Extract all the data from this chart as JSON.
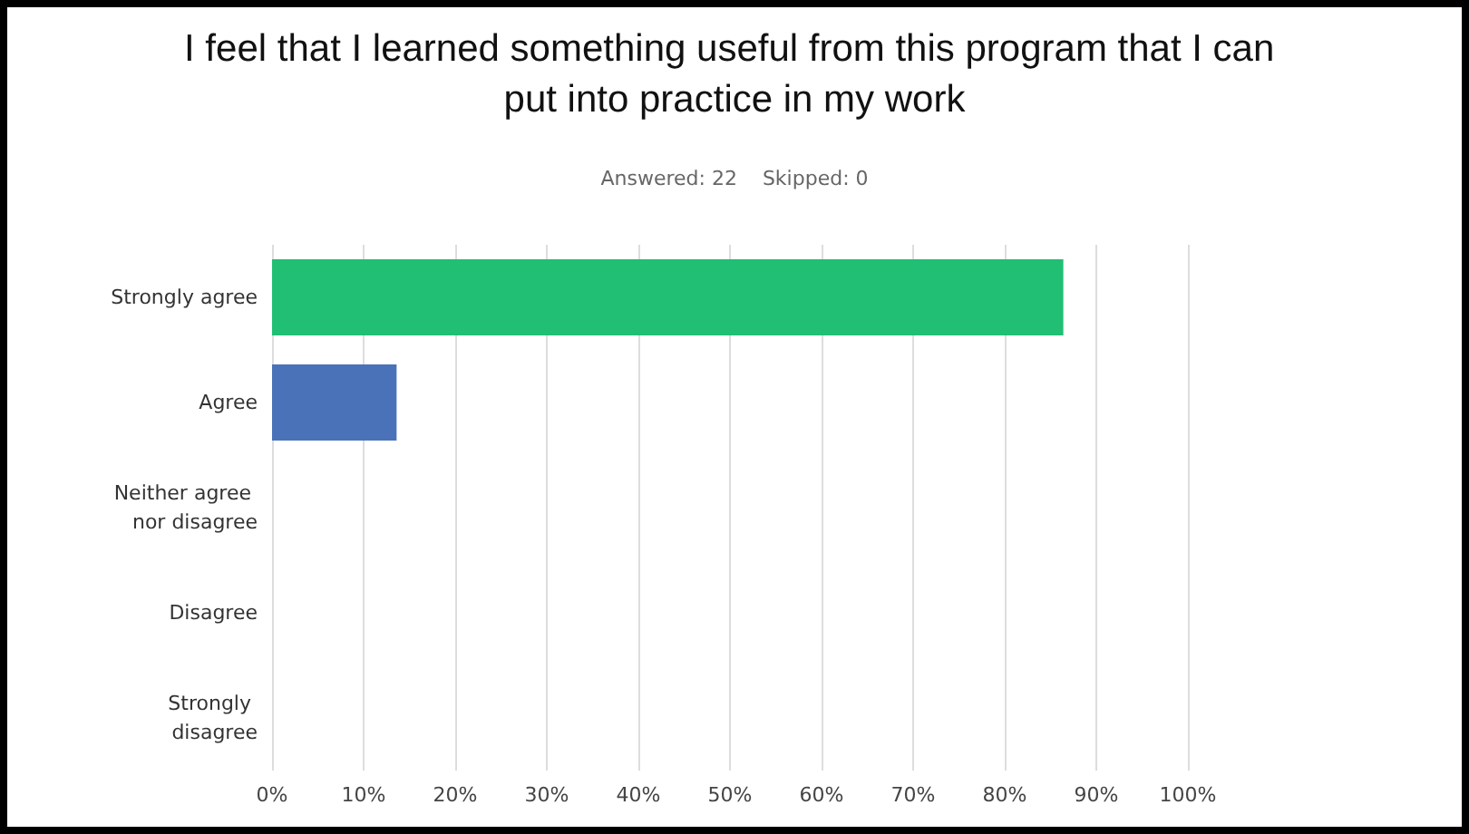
{
  "chart_data": {
    "type": "bar",
    "orientation": "horizontal",
    "title": "I feel that I learned something useful from this program that I can put into practice in my work",
    "subtitle": "Answered: 22    Skipped: 0",
    "categories": [
      "Strongly agree",
      "Agree",
      "Neither agree nor disagree",
      "Disagree",
      "Strongly disagree"
    ],
    "values": [
      86.4,
      13.6,
      0,
      0,
      0
    ],
    "colors": [
      "#21bf73",
      "#4a72b8",
      "#21bf73",
      "#21bf73",
      "#21bf73"
    ],
    "xlim": [
      0,
      100
    ],
    "xticks": [
      {
        "value": 0,
        "label": "0%"
      },
      {
        "value": 10,
        "label": "10%"
      },
      {
        "value": 20,
        "label": "20%"
      },
      {
        "value": 30,
        "label": "30%"
      },
      {
        "value": 40,
        "label": "40%"
      },
      {
        "value": 50,
        "label": "50%"
      },
      {
        "value": 60,
        "label": "60%"
      },
      {
        "value": 70,
        "label": "70%"
      },
      {
        "value": 80,
        "label": "80%"
      },
      {
        "value": 90,
        "label": "90%"
      },
      {
        "value": 100,
        "label": "100%"
      }
    ],
    "grid": "x"
  }
}
